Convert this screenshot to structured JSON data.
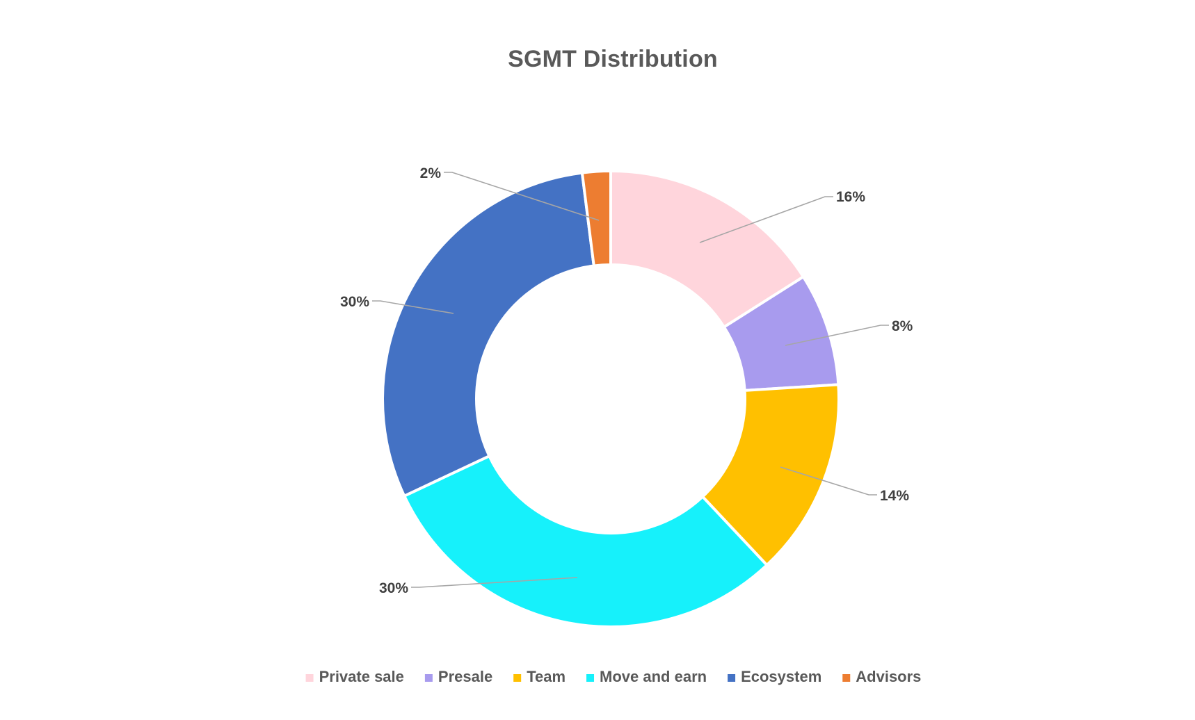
{
  "chart_data": {
    "type": "pie",
    "variant": "doughnut",
    "title": "SGMT Distribution",
    "categories": [
      "Private sale",
      "Presale",
      "Team",
      "Move and earn",
      "Ecosystem",
      "Advisors"
    ],
    "values": [
      16,
      8,
      14,
      30,
      30,
      2
    ],
    "value_labels": [
      "16%",
      "8%",
      "14%",
      "30%",
      "30%",
      "2%"
    ],
    "colors": [
      "#FFD5DC",
      "#A89BEE",
      "#FFC000",
      "#16F1FB",
      "#4472C4",
      "#ED7D31"
    ],
    "legend_position": "bottom",
    "leader_lines": true
  }
}
